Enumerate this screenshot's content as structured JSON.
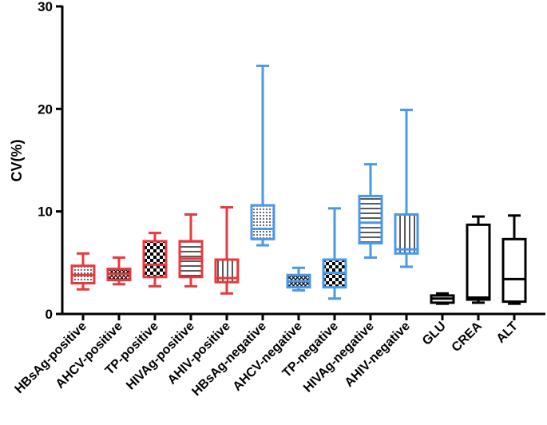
{
  "chart_data": {
    "type": "boxplot",
    "title": "",
    "xlabel": "",
    "ylabel": "CV(%)",
    "ylim": [
      0,
      30
    ],
    "yticks": [
      0,
      10,
      20,
      30
    ],
    "grid": false,
    "colors": {
      "positive": "#e8393e",
      "negative": "#4a98e8",
      "other": "#000000"
    },
    "categories": [
      "HBsAg-positive",
      "AHCV-positive",
      "TP-positive",
      "HIVAg-positive",
      "AHIV-positive",
      "HBsAg-negative",
      "AHCV-negative",
      "TP-negative",
      "HIVAg-negative",
      "AHIV-negative",
      "GLU",
      "CREA",
      "ALT"
    ],
    "boxes": [
      {
        "name": "HBsAg-positive",
        "group": "positive",
        "pattern": "dots",
        "min": 2.4,
        "q1": 3.0,
        "median": 3.8,
        "q3": 4.7,
        "max": 5.9
      },
      {
        "name": "AHCV-positive",
        "group": "positive",
        "pattern": "cross",
        "min": 2.9,
        "q1": 3.3,
        "median": 3.9,
        "q3": 4.4,
        "max": 5.5
      },
      {
        "name": "TP-positive",
        "group": "positive",
        "pattern": "checker",
        "min": 2.7,
        "q1": 3.6,
        "median": 4.8,
        "q3": 7.1,
        "max": 7.9
      },
      {
        "name": "HIVAg-positive",
        "group": "positive",
        "pattern": "hlines",
        "min": 2.7,
        "q1": 3.6,
        "median": 5.4,
        "q3": 7.1,
        "max": 9.7
      },
      {
        "name": "AHIV-positive",
        "group": "positive",
        "pattern": "vlines",
        "min": 2.0,
        "q1": 3.1,
        "median": 3.5,
        "q3": 5.3,
        "max": 10.4
      },
      {
        "name": "HBsAg-negative",
        "group": "negative",
        "pattern": "dots",
        "min": 6.7,
        "q1": 7.3,
        "median": 8.3,
        "q3": 10.6,
        "max": 24.2
      },
      {
        "name": "AHCV-negative",
        "group": "negative",
        "pattern": "cross",
        "min": 2.3,
        "q1": 2.6,
        "median": 3.2,
        "q3": 3.8,
        "max": 4.5
      },
      {
        "name": "TP-negative",
        "group": "negative",
        "pattern": "checker",
        "min": 1.5,
        "q1": 2.6,
        "median": 4.0,
        "q3": 5.3,
        "max": 10.3
      },
      {
        "name": "HIVAg-negative",
        "group": "negative",
        "pattern": "hlines",
        "min": 5.5,
        "q1": 6.9,
        "median": 8.9,
        "q3": 11.5,
        "max": 14.6
      },
      {
        "name": "AHIV-negative",
        "group": "negative",
        "pattern": "vlines",
        "min": 4.6,
        "q1": 5.9,
        "median": 6.3,
        "q3": 9.7,
        "max": 19.9
      },
      {
        "name": "GLU",
        "group": "other",
        "pattern": "none",
        "min": 1.0,
        "q1": 1.1,
        "median": 1.5,
        "q3": 1.8,
        "max": 2.0
      },
      {
        "name": "CREA",
        "group": "other",
        "pattern": "none",
        "min": 1.1,
        "q1": 1.4,
        "median": 1.6,
        "q3": 8.7,
        "max": 9.5
      },
      {
        "name": "ALT",
        "group": "other",
        "pattern": "none",
        "min": 1.0,
        "q1": 1.2,
        "median": 3.4,
        "q3": 7.3,
        "max": 9.6
      }
    ]
  }
}
